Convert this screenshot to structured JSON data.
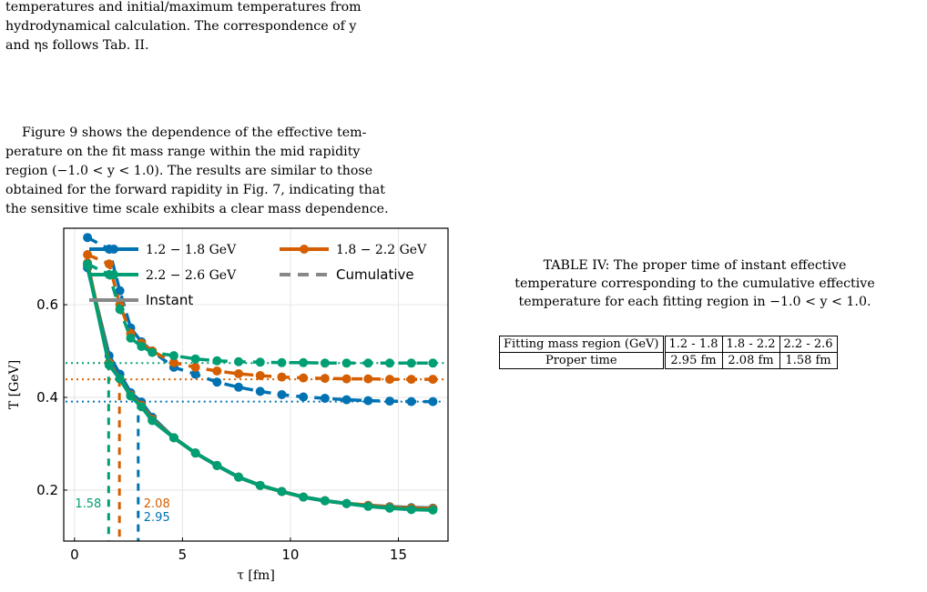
{
  "text": {
    "top_lines": [
      "temperatures and initial/maximum temperatures from",
      "hydrodynamical calculation. The correspondence of y",
      "and ηs follows Tab. II."
    ],
    "body_lines": [
      "Figure 9 shows the dependence of the effective tem-",
      "perature on the fit mass range within the mid rapidity",
      "region (−1.0 < y < 1.0). The results are similar to those",
      "obtained for the forward rapidity in Fig. 7, indicating that",
      "the sensitive time scale exhibits a clear mass dependence."
    ]
  },
  "figure": {
    "chart_data": {
      "type": "line",
      "xlabel": "τ [fm]",
      "ylabel": "T [GeV]",
      "xlim": [
        -0.5,
        17.3
      ],
      "ylim": [
        0.09,
        0.765
      ],
      "x_ticks": [
        "0",
        "5",
        "10",
        "15"
      ],
      "y_ticks": [
        "0.2",
        "0.4",
        "0.6"
      ],
      "grid": true,
      "legend": {
        "placement": "top",
        "entries": [
          "1.2 − 1.8 GeV",
          "1.8 − 2.2 GeV",
          "2.2 − 2.6 GeV",
          "Cumulative",
          "Instant"
        ]
      },
      "x": [
        0.6,
        1.6,
        2.1,
        2.6,
        3.1,
        3.6,
        4.6,
        5.6,
        6.6,
        7.6,
        8.6,
        9.6,
        10.6,
        11.6,
        12.6,
        13.6,
        14.6,
        15.6,
        16.6
      ],
      "series": [
        {
          "name": "1.2 − 1.8 GeV",
          "color": "#0072b2",
          "cumulative": [
            0.745,
            0.72,
            0.63,
            0.55,
            0.52,
            0.5,
            0.465,
            0.45,
            0.433,
            0.422,
            0.413,
            0.406,
            0.401,
            0.398,
            0.395,
            0.393,
            0.392,
            0.391,
            0.391
          ],
          "instant": [
            0.68,
            0.49,
            0.45,
            0.41,
            0.39,
            0.357,
            0.313,
            0.28,
            0.253,
            0.228,
            0.21,
            0.197,
            0.185,
            0.177,
            0.171,
            0.167,
            0.164,
            0.162,
            0.161
          ]
        },
        {
          "name": "1.8 − 2.2 GeV",
          "color": "#d55e00",
          "cumulative": [
            0.708,
            0.688,
            0.6,
            0.538,
            0.517,
            0.5,
            0.475,
            0.465,
            0.457,
            0.451,
            0.447,
            0.444,
            0.442,
            0.441,
            0.44,
            0.44,
            0.439,
            0.439,
            0.439
          ],
          "instant": [
            0.69,
            0.475,
            0.44,
            0.405,
            0.383,
            0.353,
            0.313,
            0.28,
            0.253,
            0.228,
            0.21,
            0.197,
            0.185,
            0.177,
            0.171,
            0.167,
            0.163,
            0.161,
            0.16
          ]
        },
        {
          "name": "2.2 − 2.6 GeV",
          "color": "#009e73",
          "cumulative": [
            0.688,
            0.665,
            0.59,
            0.528,
            0.51,
            0.497,
            0.49,
            0.483,
            0.479,
            0.477,
            0.476,
            0.475,
            0.475,
            0.474,
            0.474,
            0.474,
            0.474,
            0.474,
            0.474
          ],
          "instant": [
            0.685,
            0.47,
            0.44,
            0.403,
            0.38,
            0.35,
            0.313,
            0.28,
            0.253,
            0.228,
            0.21,
            0.197,
            0.185,
            0.177,
            0.171,
            0.165,
            0.161,
            0.158,
            0.157
          ]
        }
      ],
      "proper_time_markers": [
        {
          "tau": 1.58,
          "label": "1.58",
          "series": "2.2 − 2.6 GeV",
          "color": "#009e73",
          "T": 0.474
        },
        {
          "tau": 2.08,
          "label": "2.08",
          "series": "1.8 − 2.2 GeV",
          "color": "#d55e00",
          "T": 0.439
        },
        {
          "tau": 2.95,
          "label": "2.95",
          "series": "1.2 − 1.8 GeV",
          "color": "#0072b2",
          "T": 0.391
        }
      ]
    }
  },
  "table_caption_lines": [
    "TABLE IV: The proper time of instant effective",
    "temperature corresponding to the cumulative effective",
    "temperature for each fitting region in −1.0 < y < 1.0."
  ],
  "table": {
    "header": [
      "Fitting mass region (GeV)",
      "1.2 - 1.8",
      "1.8 - 2.2",
      "2.2 - 2.6"
    ],
    "row": [
      "Proper time",
      "2.95 fm",
      "2.08 fm",
      "1.58 fm"
    ]
  }
}
